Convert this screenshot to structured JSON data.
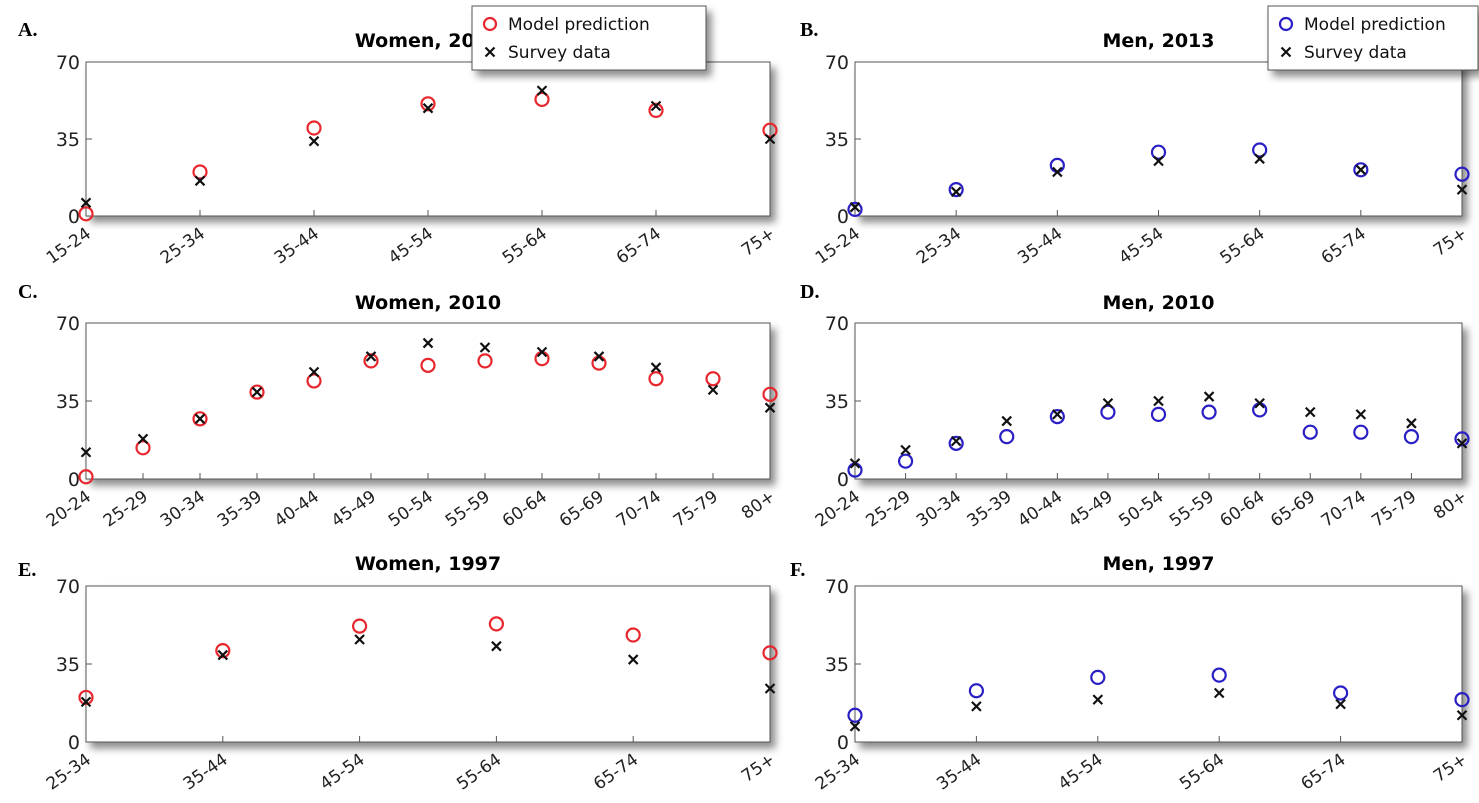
{
  "colors": {
    "women": "#e8262e",
    "men": "#2a1fc4",
    "survey": "#111111"
  },
  "legend": {
    "model": "Model prediction",
    "survey": "Survey data"
  },
  "chart_data": [
    {
      "panel": "A.",
      "title": "Women, 2013",
      "type": "scatter",
      "sex": "women",
      "categories": [
        "15-24",
        "25-34",
        "35-44",
        "45-54",
        "55-64",
        "65-74",
        "75+"
      ],
      "yticks": [
        0,
        35,
        70
      ],
      "ylim": [
        0,
        70
      ],
      "legend": true,
      "grid": false,
      "series": [
        {
          "name": "Model prediction",
          "marker": "circle",
          "values": [
            1,
            20,
            40,
            51,
            53,
            48,
            39
          ]
        },
        {
          "name": "Survey data",
          "marker": "x",
          "values": [
            6,
            16,
            34,
            49,
            57,
            50,
            35
          ]
        }
      ]
    },
    {
      "panel": "B.",
      "title": "Men, 2013",
      "type": "scatter",
      "sex": "men",
      "categories": [
        "15-24",
        "25-34",
        "35-44",
        "45-54",
        "55-64",
        "65-74",
        "75+"
      ],
      "yticks": [
        0,
        35,
        70
      ],
      "ylim": [
        0,
        70
      ],
      "legend": true,
      "grid": false,
      "series": [
        {
          "name": "Model prediction",
          "marker": "circle",
          "values": [
            3,
            12,
            23,
            29,
            30,
            21,
            19
          ]
        },
        {
          "name": "Survey data",
          "marker": "x",
          "values": [
            4,
            11,
            20,
            25,
            26,
            21,
            12
          ]
        }
      ]
    },
    {
      "panel": "C.",
      "title": "Women, 2010",
      "type": "scatter",
      "sex": "women",
      "categories": [
        "20-24",
        "25-29",
        "30-34",
        "35-39",
        "40-44",
        "45-49",
        "50-54",
        "55-59",
        "60-64",
        "65-69",
        "70-74",
        "75-79",
        "80+"
      ],
      "yticks": [
        0,
        35,
        70
      ],
      "ylim": [
        0,
        70
      ],
      "legend": false,
      "grid": false,
      "series": [
        {
          "name": "Model prediction",
          "marker": "circle",
          "values": [
            1,
            14,
            27,
            39,
            44,
            53,
            51,
            53,
            54,
            52,
            45,
            45,
            38
          ]
        },
        {
          "name": "Survey data",
          "marker": "x",
          "values": [
            12,
            18,
            27,
            39,
            48,
            55,
            61,
            59,
            57,
            55,
            50,
            40,
            32
          ]
        }
      ]
    },
    {
      "panel": "D.",
      "title": "Men, 2010",
      "type": "scatter",
      "sex": "men",
      "categories": [
        "20-24",
        "25-29",
        "30-34",
        "35-39",
        "40-44",
        "45-49",
        "50-54",
        "55-59",
        "60-64",
        "65-69",
        "70-74",
        "75-79",
        "80+"
      ],
      "yticks": [
        0,
        35,
        70
      ],
      "ylim": [
        0,
        70
      ],
      "legend": false,
      "grid": false,
      "series": [
        {
          "name": "Model prediction",
          "marker": "circle",
          "values": [
            4,
            8,
            16,
            19,
            28,
            30,
            29,
            30,
            31,
            21,
            21,
            19,
            18
          ]
        },
        {
          "name": "Survey data",
          "marker": "x",
          "values": [
            7,
            13,
            17,
            26,
            29,
            34,
            35,
            37,
            34,
            30,
            29,
            25,
            16
          ]
        }
      ]
    },
    {
      "panel": "E.",
      "title": "Women, 1997",
      "type": "scatter",
      "sex": "women",
      "categories": [
        "25-34",
        "35-44",
        "45-54",
        "55-64",
        "65-74",
        "75+"
      ],
      "yticks": [
        0,
        35,
        70
      ],
      "ylim": [
        0,
        70
      ],
      "legend": false,
      "grid": false,
      "series": [
        {
          "name": "Model prediction",
          "marker": "circle",
          "values": [
            20,
            41,
            52,
            53,
            48,
            40
          ]
        },
        {
          "name": "Survey data",
          "marker": "x",
          "values": [
            18,
            39,
            46,
            43,
            37,
            24
          ]
        }
      ]
    },
    {
      "panel": "F.",
      "title": "Men, 1997",
      "type": "scatter",
      "sex": "men",
      "categories": [
        "25-34",
        "35-44",
        "45-54",
        "55-64",
        "65-74",
        "75+"
      ],
      "yticks": [
        0,
        35,
        70
      ],
      "ylim": [
        0,
        70
      ],
      "legend": false,
      "grid": false,
      "series": [
        {
          "name": "Model prediction",
          "marker": "circle",
          "values": [
            12,
            23,
            29,
            30,
            22,
            19
          ]
        },
        {
          "name": "Survey data",
          "marker": "x",
          "values": [
            7,
            16,
            19,
            22,
            17,
            12
          ]
        }
      ]
    }
  ]
}
